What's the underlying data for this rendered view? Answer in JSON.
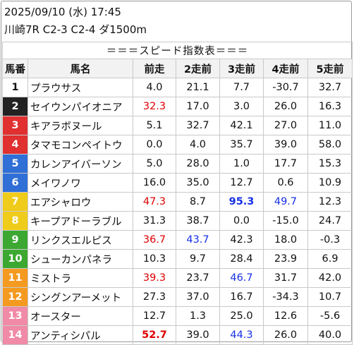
{
  "header": {
    "datetime": "2025/09/10 (水) 17:45",
    "race": "川崎7R C2-3 C2-4 ダ1500m"
  },
  "table": {
    "title": "＝＝＝スピード指数表＝＝＝",
    "columns": [
      "馬番",
      "馬名",
      "前走",
      "2走前",
      "3走前",
      "4走前",
      "5走前"
    ],
    "colors": {
      "red": "#e00000",
      "blue": "#1530e6",
      "gate": [
        "#ffffff",
        "#222222",
        "#e03030",
        "#2f6fd6",
        "#f0cc1a",
        "#3ca832",
        "#f59a20",
        "#f08aa6"
      ]
    },
    "rows": [
      {
        "num": "1",
        "gate": 1,
        "name": "プラウサス",
        "vals": [
          "4.0",
          "21.1",
          "7.7",
          "-30.7",
          "32.7"
        ],
        "styles": [
          "",
          "",
          "",
          "",
          ""
        ]
      },
      {
        "num": "2",
        "gate": 2,
        "name": "セイウンパイオニア",
        "vals": [
          "32.3",
          "17.0",
          "3.0",
          "26.0",
          "16.3"
        ],
        "styles": [
          "red",
          "",
          "",
          "",
          ""
        ]
      },
      {
        "num": "3",
        "gate": 3,
        "name": "キアラボヌール",
        "vals": [
          "5.1",
          "32.7",
          "42.1",
          "27.0",
          "11.0"
        ],
        "styles": [
          "",
          "",
          "",
          "",
          ""
        ]
      },
      {
        "num": "4",
        "gate": 3,
        "name": "タマモコンペイトウ",
        "vals": [
          "0.0",
          "4.0",
          "35.7",
          "39.0",
          "58.0"
        ],
        "styles": [
          "",
          "",
          "",
          "",
          ""
        ]
      },
      {
        "num": "5",
        "gate": 4,
        "name": "カレンアイバーソン",
        "vals": [
          "5.0",
          "28.0",
          "1.0",
          "17.7",
          "15.3"
        ],
        "styles": [
          "",
          "",
          "",
          "",
          ""
        ]
      },
      {
        "num": "6",
        "gate": 4,
        "name": "メイワノワ",
        "vals": [
          "16.0",
          "35.0",
          "12.7",
          "0.6",
          "10.9"
        ],
        "styles": [
          "",
          "",
          "",
          "",
          ""
        ]
      },
      {
        "num": "7",
        "gate": 5,
        "name": "エアシャロウ",
        "vals": [
          "47.3",
          "8.7",
          "95.3",
          "49.7",
          "12.3"
        ],
        "styles": [
          "red",
          "",
          "blue bold",
          "blue",
          ""
        ]
      },
      {
        "num": "8",
        "gate": 5,
        "name": "キープアドーラブル",
        "vals": [
          "31.3",
          "38.7",
          "0.0",
          "-15.0",
          "24.7"
        ],
        "styles": [
          "",
          "",
          "",
          "",
          ""
        ]
      },
      {
        "num": "9",
        "gate": 6,
        "name": "リンクスエルピス",
        "vals": [
          "36.7",
          "43.7",
          "42.3",
          "18.0",
          "-0.3"
        ],
        "styles": [
          "red",
          "blue",
          "",
          "",
          ""
        ]
      },
      {
        "num": "10",
        "gate": 6,
        "name": "シューカンパネラ",
        "vals": [
          "10.3",
          "9.7",
          "28.4",
          "23.9",
          "6.9"
        ],
        "styles": [
          "",
          "",
          "",
          "",
          ""
        ]
      },
      {
        "num": "11",
        "gate": 7,
        "name": "ミストラ",
        "vals": [
          "39.3",
          "23.7",
          "46.7",
          "31.7",
          "42.0"
        ],
        "styles": [
          "red",
          "",
          "blue",
          "",
          ""
        ]
      },
      {
        "num": "12",
        "gate": 7,
        "name": "シングンアーメット",
        "vals": [
          "27.3",
          "37.0",
          "16.7",
          "-34.3",
          "10.7"
        ],
        "styles": [
          "",
          "",
          "",
          "",
          ""
        ]
      },
      {
        "num": "13",
        "gate": 8,
        "name": "オースター",
        "vals": [
          "12.7",
          "1.3",
          "25.0",
          "12.6",
          "-5.6"
        ],
        "styles": [
          "",
          "",
          "",
          "",
          ""
        ]
      },
      {
        "num": "14",
        "gate": 8,
        "name": "アンティシパル",
        "vals": [
          "52.7",
          "39.0",
          "44.3",
          "26.0",
          "40.0"
        ],
        "styles": [
          "red bold",
          "",
          "blue",
          "",
          ""
        ]
      }
    ]
  }
}
